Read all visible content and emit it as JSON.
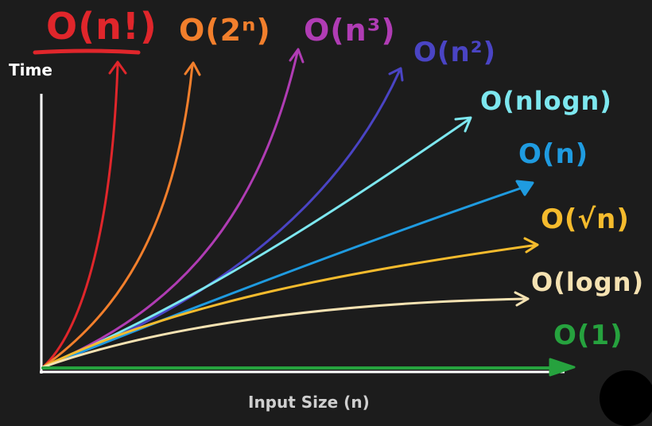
{
  "axes": {
    "y_label": "Time",
    "x_label": "Input Size (n)",
    "axis_color": "#ffffff"
  },
  "complexities": [
    {
      "key": "factorial",
      "label": "O(n!)",
      "color": "#e0262b"
    },
    {
      "key": "exponential",
      "label": "O(2ⁿ)",
      "color": "#f27f2c"
    },
    {
      "key": "cubic",
      "label": "O(n³)",
      "color": "#b03cb4"
    },
    {
      "key": "quadratic",
      "label": "O(n²)",
      "color": "#4a44c4"
    },
    {
      "key": "nlogn",
      "label": "O(nlogn)",
      "color": "#7de7ef"
    },
    {
      "key": "linear",
      "label": "O(n)",
      "color": "#1f9be0"
    },
    {
      "key": "sqrt",
      "label": "O(√n)",
      "color": "#f5bb2d"
    },
    {
      "key": "log",
      "label": "O(logn)",
      "color": "#f5e2b2"
    },
    {
      "key": "constant",
      "label": "O(1)",
      "color": "#26a23e"
    }
  ]
}
